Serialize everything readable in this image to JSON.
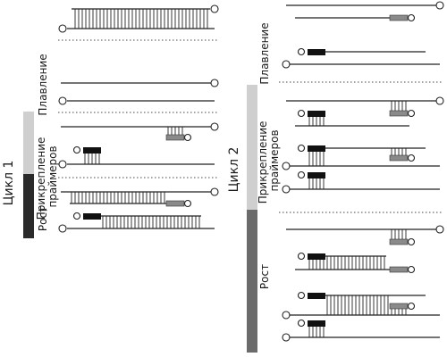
{
  "cycles": [
    {
      "title": "Цикл 1",
      "stages": [
        {
          "label": "Плавление",
          "color": "#ffffff"
        },
        {
          "label": "Прикрепление праймеров",
          "color": "#cfcfcf"
        },
        {
          "label": "Рост",
          "color": "#2a2a2a"
        }
      ]
    },
    {
      "title": "Цикл 2",
      "stages": [
        {
          "label": "Плавление",
          "color": "#ffffff"
        },
        {
          "label": "Прикрепление праймеров",
          "color": "#cfcfcf"
        },
        {
          "label": "Рост",
          "color": "#6b6b6b"
        }
      ]
    }
  ]
}
